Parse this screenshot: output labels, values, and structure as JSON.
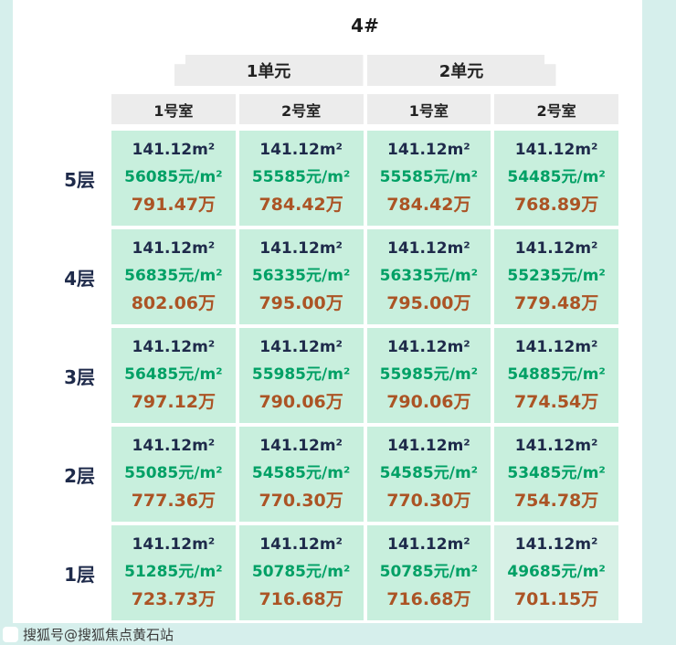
{
  "watermark": "搜狐号@搜狐焦点黄石站",
  "colors": {
    "page_background": "#d6efec",
    "panel_background": "#ffffff",
    "header_background": "#ececec",
    "cell_background": "#c8efdd",
    "cell_background_light": "#d7f1e6",
    "area_text": "#1e2a4a",
    "unit_price_text": "#00a065",
    "total_price_text": "#ab5425"
  },
  "chart_data": {
    "type": "table",
    "title": "4#",
    "unit_headers": [
      "1单元",
      "2单元"
    ],
    "room_headers": [
      "1号室",
      "2号室",
      "1号室",
      "2号室"
    ],
    "row_labels": [
      "5层",
      "4层",
      "3层",
      "2层",
      "1层"
    ],
    "rows": [
      {
        "floor": "5层",
        "cells": [
          {
            "area": "141.12m²",
            "price": "56085元/m²",
            "total": "791.47万"
          },
          {
            "area": "141.12m²",
            "price": "55585元/m²",
            "total": "784.42万"
          },
          {
            "area": "141.12m²",
            "price": "55585元/m²",
            "total": "784.42万"
          },
          {
            "area": "141.12m²",
            "price": "54485元/m²",
            "total": "768.89万"
          }
        ]
      },
      {
        "floor": "4层",
        "cells": [
          {
            "area": "141.12m²",
            "price": "56835元/m²",
            "total": "802.06万"
          },
          {
            "area": "141.12m²",
            "price": "56335元/m²",
            "total": "795.00万"
          },
          {
            "area": "141.12m²",
            "price": "56335元/m²",
            "total": "795.00万"
          },
          {
            "area": "141.12m²",
            "price": "55235元/m²",
            "total": "779.48万"
          }
        ]
      },
      {
        "floor": "3层",
        "cells": [
          {
            "area": "141.12m²",
            "price": "56485元/m²",
            "total": "797.12万"
          },
          {
            "area": "141.12m²",
            "price": "55985元/m²",
            "total": "790.06万"
          },
          {
            "area": "141.12m²",
            "price": "55985元/m²",
            "total": "790.06万"
          },
          {
            "area": "141.12m²",
            "price": "54885元/m²",
            "total": "774.54万"
          }
        ]
      },
      {
        "floor": "2层",
        "cells": [
          {
            "area": "141.12m²",
            "price": "55085元/m²",
            "total": "777.36万"
          },
          {
            "area": "141.12m²",
            "price": "54585元/m²",
            "total": "770.30万"
          },
          {
            "area": "141.12m²",
            "price": "54585元/m²",
            "total": "770.30万"
          },
          {
            "area": "141.12m²",
            "price": "53485元/m²",
            "total": "754.78万"
          }
        ]
      },
      {
        "floor": "1层",
        "cells": [
          {
            "area": "141.12m²",
            "price": "51285元/m²",
            "total": "723.73万"
          },
          {
            "area": "141.12m²",
            "price": "50785元/m²",
            "total": "716.68万"
          },
          {
            "area": "141.12m²",
            "price": "50785元/m²",
            "total": "716.68万"
          },
          {
            "area": "141.12m²",
            "price": "49685元/m²",
            "total": "701.15万"
          }
        ]
      }
    ]
  }
}
